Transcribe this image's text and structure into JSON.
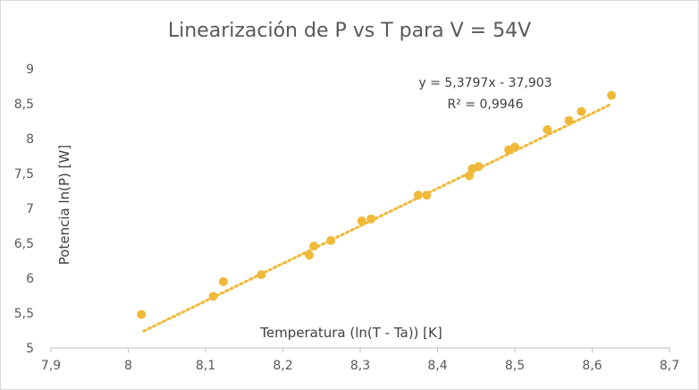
{
  "chart_data": {
    "type": "scatter",
    "title": "Linearización de P vs T para V = 54V",
    "xlabel": "Temperatura (ln(T - Ta)) [K]",
    "ylabel": "Potencia ln(P) [W]",
    "xlim": [
      7.9,
      8.7
    ],
    "ylim": [
      5,
      9
    ],
    "x_ticks": [
      "7,9",
      "8",
      "8,1",
      "8,2",
      "8,3",
      "8,4",
      "8,5",
      "8,6",
      "8,7"
    ],
    "y_ticks": [
      "5",
      "5,5",
      "6",
      "6,5",
      "7",
      "7,5",
      "8",
      "8,5",
      "9"
    ],
    "grid": false,
    "marker_color": "#f0b93a",
    "trendline": {
      "type": "linear",
      "slope": 5.3797,
      "intercept": -37.903,
      "x_range": [
        8.02,
        8.625
      ],
      "style": "dotted",
      "color": "#f0b93a",
      "equation": "y = 5,3797x - 37,903",
      "r2": "R² = 0,9946"
    },
    "series": [
      {
        "points": [
          [
            8.017,
            5.48
          ],
          [
            8.11,
            5.74
          ],
          [
            8.123,
            5.95
          ],
          [
            8.172,
            6.05
          ],
          [
            8.234,
            6.33
          ],
          [
            8.24,
            6.46
          ],
          [
            8.262,
            6.54
          ],
          [
            8.302,
            6.82
          ],
          [
            8.314,
            6.85
          ],
          [
            8.375,
            7.19
          ],
          [
            8.386,
            7.19
          ],
          [
            8.441,
            7.47
          ],
          [
            8.445,
            7.57
          ],
          [
            8.453,
            7.6
          ],
          [
            8.492,
            7.84
          ],
          [
            8.5,
            7.88
          ],
          [
            8.542,
            8.13
          ],
          [
            8.57,
            8.26
          ],
          [
            8.586,
            8.39
          ],
          [
            8.625,
            8.62
          ]
        ]
      }
    ]
  }
}
